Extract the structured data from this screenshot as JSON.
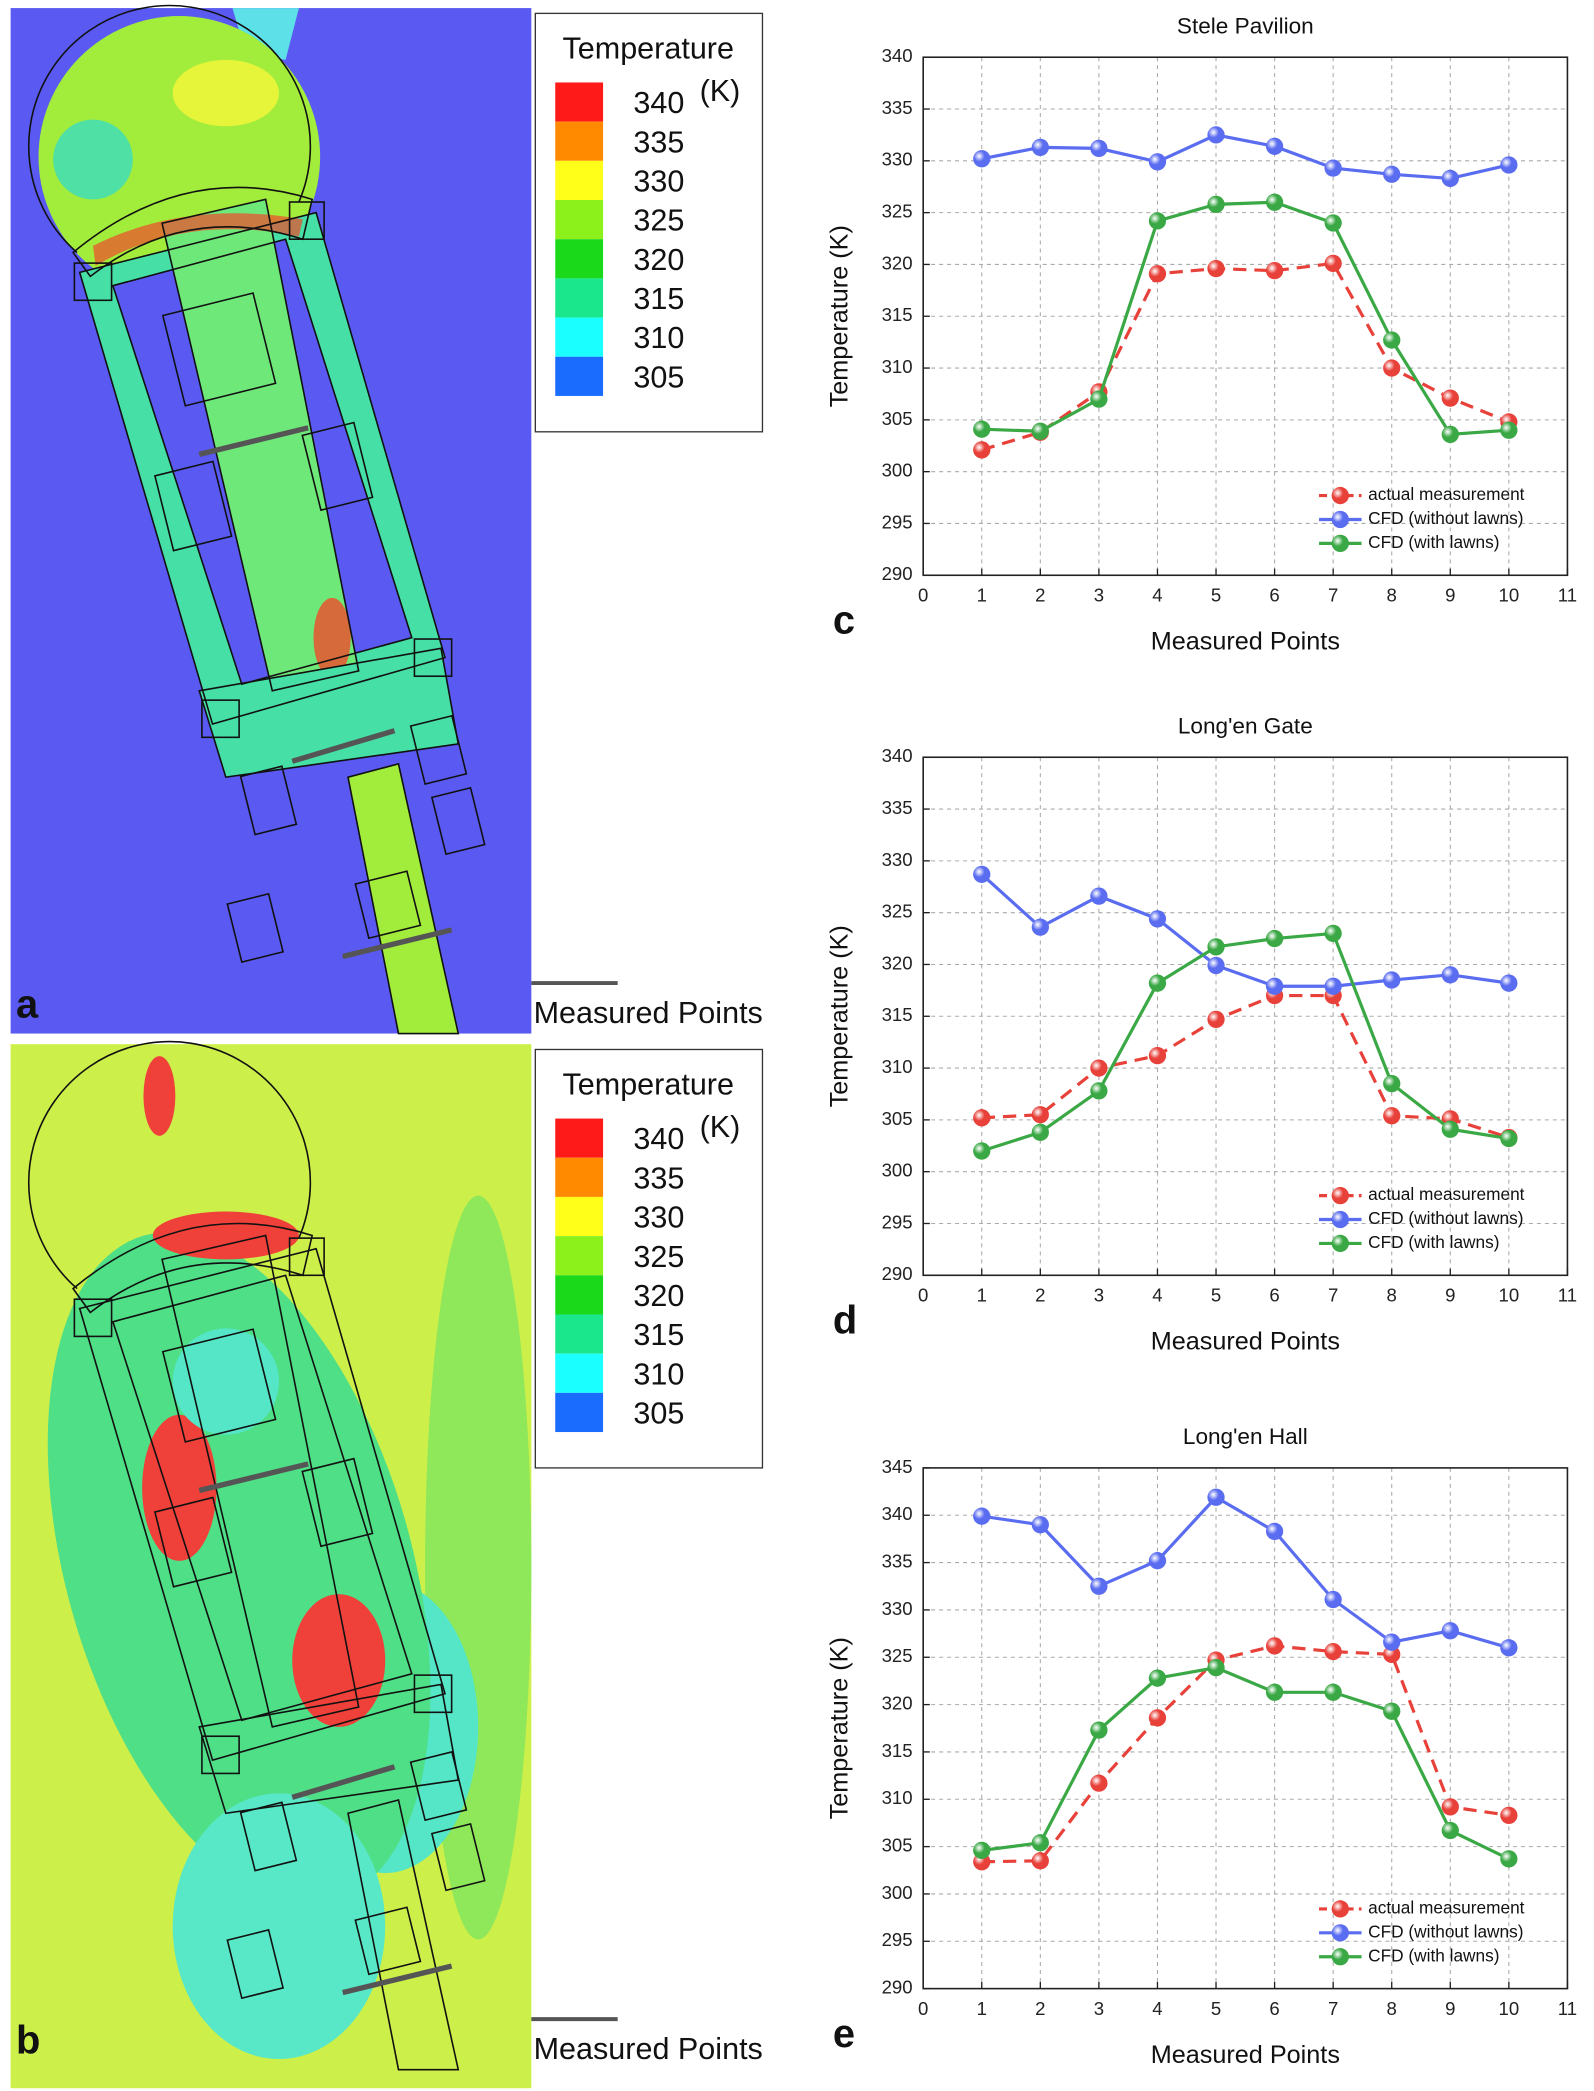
{
  "chart_data": [
    {
      "type": "line",
      "title": "Stele Pavilion",
      "panel_label": "c",
      "xlabel": "Measured Points",
      "ylabel": "Temperature (K)",
      "x": [
        1,
        2,
        3,
        4,
        5,
        6,
        7,
        8,
        9,
        10
      ],
      "xlim": [
        0,
        11
      ],
      "xticks": [
        0,
        1,
        2,
        3,
        4,
        5,
        6,
        7,
        8,
        9,
        10,
        11
      ],
      "ylim": [
        290,
        340
      ],
      "yticks": [
        290,
        295,
        300,
        305,
        310,
        315,
        320,
        325,
        330,
        335,
        340
      ],
      "grid": true,
      "legend": "lower right",
      "series": [
        {
          "name": "actual measurement",
          "color": "#e8413a",
          "line_style": "dashed",
          "values": [
            302.1,
            303.8,
            307.7,
            319.1,
            319.6,
            319.4,
            320.1,
            310.0,
            307.1,
            304.8
          ]
        },
        {
          "name": "CFD (without lawns)",
          "color": "#5a6cf0",
          "line_style": "solid",
          "values": [
            330.2,
            331.3,
            331.2,
            329.9,
            332.5,
            331.4,
            329.3,
            328.7,
            328.3,
            329.6
          ]
        },
        {
          "name": "CFD (with lawns)",
          "color": "#3aa845",
          "line_style": "solid",
          "values": [
            304.1,
            303.9,
            307.0,
            324.2,
            325.8,
            326.0,
            324.0,
            312.7,
            303.6,
            304.0
          ]
        }
      ]
    },
    {
      "type": "line",
      "title": "Long'en Gate",
      "panel_label": "d",
      "xlabel": "Measured Points",
      "ylabel": "Temperature (K)",
      "x": [
        1,
        2,
        3,
        4,
        5,
        6,
        7,
        8,
        9,
        10
      ],
      "xlim": [
        0,
        11
      ],
      "xticks": [
        0,
        1,
        2,
        3,
        4,
        5,
        6,
        7,
        8,
        9,
        10,
        11
      ],
      "ylim": [
        290,
        340
      ],
      "yticks": [
        290,
        295,
        300,
        305,
        310,
        315,
        320,
        325,
        330,
        335,
        340
      ],
      "grid": true,
      "legend": "lower right",
      "series": [
        {
          "name": "actual measurement",
          "color": "#e8413a",
          "line_style": "dashed",
          "values": [
            305.2,
            305.5,
            310.0,
            311.2,
            314.7,
            317.0,
            317.0,
            305.4,
            305.1,
            303.3
          ]
        },
        {
          "name": "CFD (without lawns)",
          "color": "#5a6cf0",
          "line_style": "solid",
          "values": [
            328.7,
            323.6,
            326.6,
            324.4,
            319.9,
            317.9,
            317.9,
            318.5,
            319.0,
            318.2
          ]
        },
        {
          "name": "CFD (with lawns)",
          "color": "#3aa845",
          "line_style": "solid",
          "values": [
            302.0,
            303.8,
            307.8,
            318.2,
            321.7,
            322.5,
            323.0,
            308.5,
            304.1,
            303.2
          ]
        }
      ]
    },
    {
      "type": "line",
      "title": "Long'en Hall",
      "panel_label": "e",
      "xlabel": "Measured Points",
      "ylabel": "Temperature (K)",
      "x": [
        1,
        2,
        3,
        4,
        5,
        6,
        7,
        8,
        9,
        10
      ],
      "xlim": [
        0,
        11
      ],
      "xticks": [
        0,
        1,
        2,
        3,
        4,
        5,
        6,
        7,
        8,
        9,
        10,
        11
      ],
      "ylim": [
        290,
        345
      ],
      "yticks": [
        290,
        295,
        300,
        305,
        310,
        315,
        320,
        325,
        330,
        335,
        340,
        345
      ],
      "grid": true,
      "legend": "lower right",
      "series": [
        {
          "name": "actual measurement",
          "color": "#e8413a",
          "line_style": "dashed",
          "values": [
            303.4,
            303.5,
            311.7,
            318.6,
            324.7,
            326.2,
            325.6,
            325.3,
            309.2,
            308.3
          ]
        },
        {
          "name": "CFD (without lawns)",
          "color": "#5a6cf0",
          "line_style": "solid",
          "values": [
            339.9,
            339.0,
            332.5,
            335.2,
            341.9,
            338.3,
            331.1,
            326.6,
            327.8,
            326.0
          ]
        },
        {
          "name": "CFD (with lawns)",
          "color": "#3aa845",
          "line_style": "solid",
          "values": [
            304.6,
            305.4,
            317.3,
            322.8,
            323.9,
            321.3,
            321.3,
            319.3,
            306.7,
            303.7
          ]
        }
      ]
    }
  ],
  "contour_maps": [
    {
      "panel_label": "a",
      "legend_title": "Temperature",
      "legend_unit": "(K)",
      "line_label": "Measured Points",
      "levels": [
        {
          "value": 340,
          "color": "#ff1a1a"
        },
        {
          "value": 335,
          "color": "#ff8a00"
        },
        {
          "value": 330,
          "color": "#ffff1a"
        },
        {
          "value": 325,
          "color": "#8cf01a"
        },
        {
          "value": 320,
          "color": "#1ad81a"
        },
        {
          "value": 315,
          "color": "#1ae68c"
        },
        {
          "value": 310,
          "color": "#1affff"
        },
        {
          "value": 305,
          "color": "#1a6cff"
        }
      ]
    },
    {
      "panel_label": "b",
      "legend_title": "Temperature",
      "legend_unit": "(K)",
      "line_label": "Measured Points",
      "levels": [
        {
          "value": 340,
          "color": "#ff1a1a"
        },
        {
          "value": 335,
          "color": "#ff8a00"
        },
        {
          "value": 330,
          "color": "#ffff1a"
        },
        {
          "value": 325,
          "color": "#8cf01a"
        },
        {
          "value": 320,
          "color": "#1ad81a"
        },
        {
          "value": 315,
          "color": "#1ae68c"
        },
        {
          "value": 310,
          "color": "#1affff"
        },
        {
          "value": 305,
          "color": "#1a6cff"
        }
      ]
    }
  ]
}
